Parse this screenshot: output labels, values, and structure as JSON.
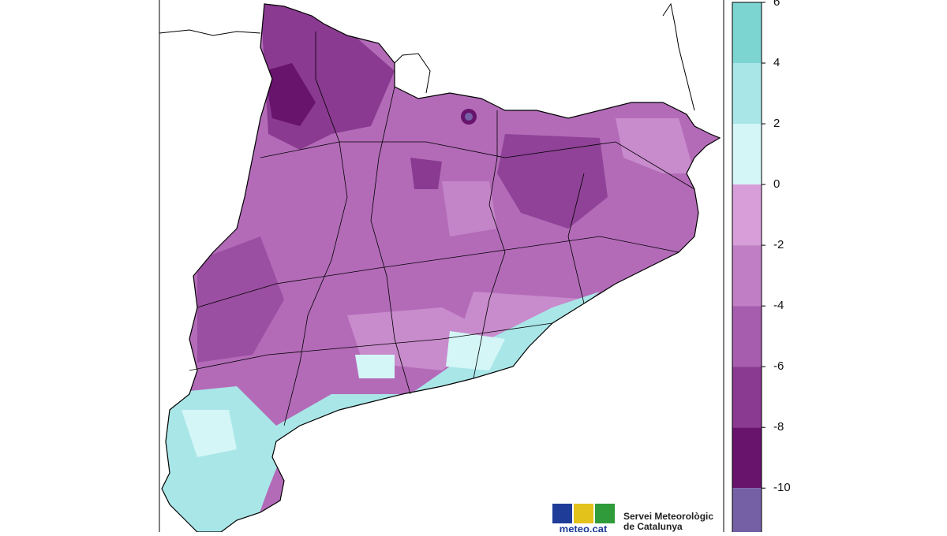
{
  "colorbar": {
    "ticks": [
      6,
      4,
      2,
      0,
      -2,
      -4,
      -6,
      -8,
      -10
    ],
    "lim": [
      -11.5,
      6
    ],
    "colors": [
      "#7dd5d2",
      "#a9e6e8",
      "#d4f6f7",
      "#d79ed9",
      "#c07fc5",
      "#a65dad",
      "#8a3a91",
      "#68136c",
      "#7560a6"
    ]
  },
  "logo": {
    "name": "meteo.cat",
    "organization": [
      "Servei Meteorològic",
      "de Catalunya"
    ]
  }
}
